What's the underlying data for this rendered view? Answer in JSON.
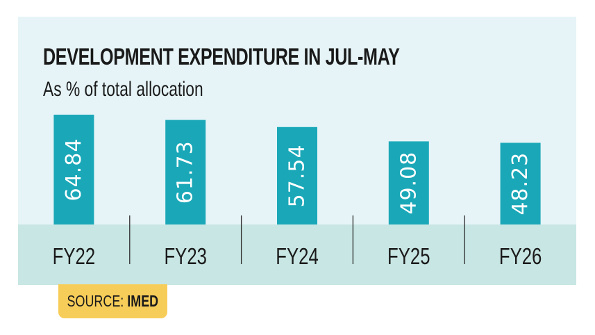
{
  "chart_data": {
    "type": "bar",
    "title": "DEVELOPMENT EXPENDITURE IN JUL-MAY",
    "subtitle": "As % of total allocation",
    "categories": [
      "FY22",
      "FY23",
      "FY24",
      "FY25",
      "FY26"
    ],
    "values": [
      64.84,
      61.73,
      57.54,
      49.08,
      48.23
    ],
    "value_labels": [
      "64.84",
      "61.73",
      "57.54",
      "49.08",
      "48.23"
    ],
    "ylim": [
      0,
      64.84
    ],
    "grid": false,
    "legend": "none",
    "bar_color": "#1aa8b8",
    "axis_band_color": "#c8e6e3"
  },
  "source": {
    "prefix": "SOURCE: ",
    "name": "IMED"
  },
  "colors": {
    "panel_background": "#e6f4f7",
    "source_badge": "#f7cd5a"
  }
}
